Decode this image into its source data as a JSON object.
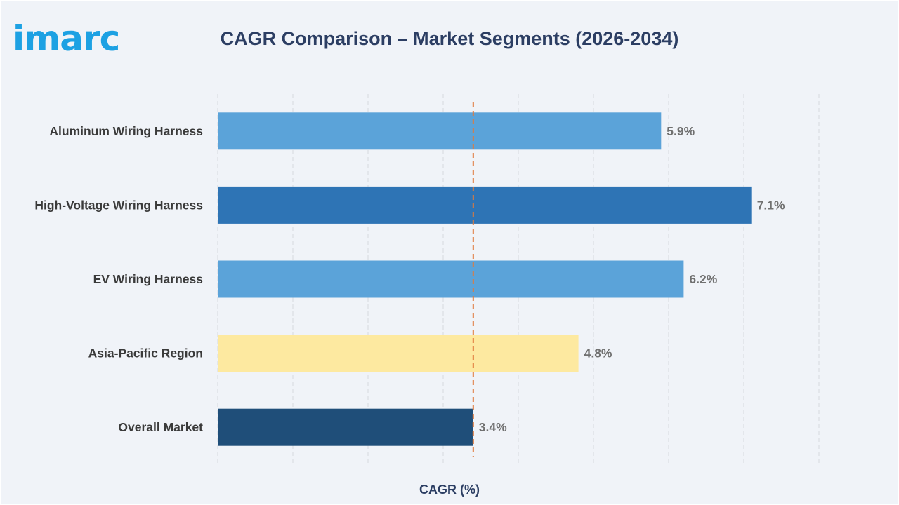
{
  "logo": {
    "text": "imarc"
  },
  "chart_data": {
    "type": "bar",
    "orientation": "horizontal",
    "title": "CAGR Comparison – Market Segments (2026-2034)",
    "xlabel": "CAGR (%)",
    "ylabel": "",
    "xlim": [
      0,
      8
    ],
    "grid": true,
    "reference_line": {
      "value": 3.4,
      "style": "dashed",
      "color": "#e07b3c"
    },
    "categories": [
      "Aluminum Wiring Harness",
      "High-Voltage Wiring Harness",
      "EV Wiring Harness",
      "Asia-Pacific Region",
      "Overall Market"
    ],
    "values": [
      5.9,
      7.1,
      6.2,
      4.8,
      3.4
    ],
    "data_labels": [
      "5.9%",
      "7.1%",
      "6.2%",
      "4.8%",
      "3.4%"
    ],
    "colors": [
      "#5ba3d9",
      "#2e74b5",
      "#5ba3d9",
      "#fde9a0",
      "#1f4e79"
    ]
  }
}
